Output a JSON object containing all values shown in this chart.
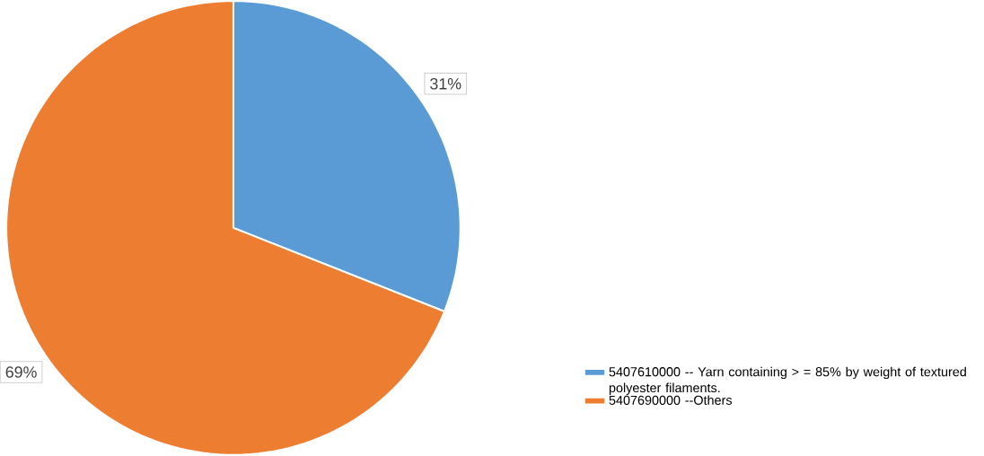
{
  "chart_data": {
    "type": "pie",
    "categories": [
      "5407610000 -- Yarn containing > = 85% by weight of textured polyester filaments.",
      "5407690000 --Others"
    ],
    "values": [
      31,
      69
    ],
    "colors": [
      "#5b9bd5",
      "#ed7d31"
    ],
    "value_labels": [
      "31%",
      "69%"
    ],
    "legend": "bottom right"
  }
}
